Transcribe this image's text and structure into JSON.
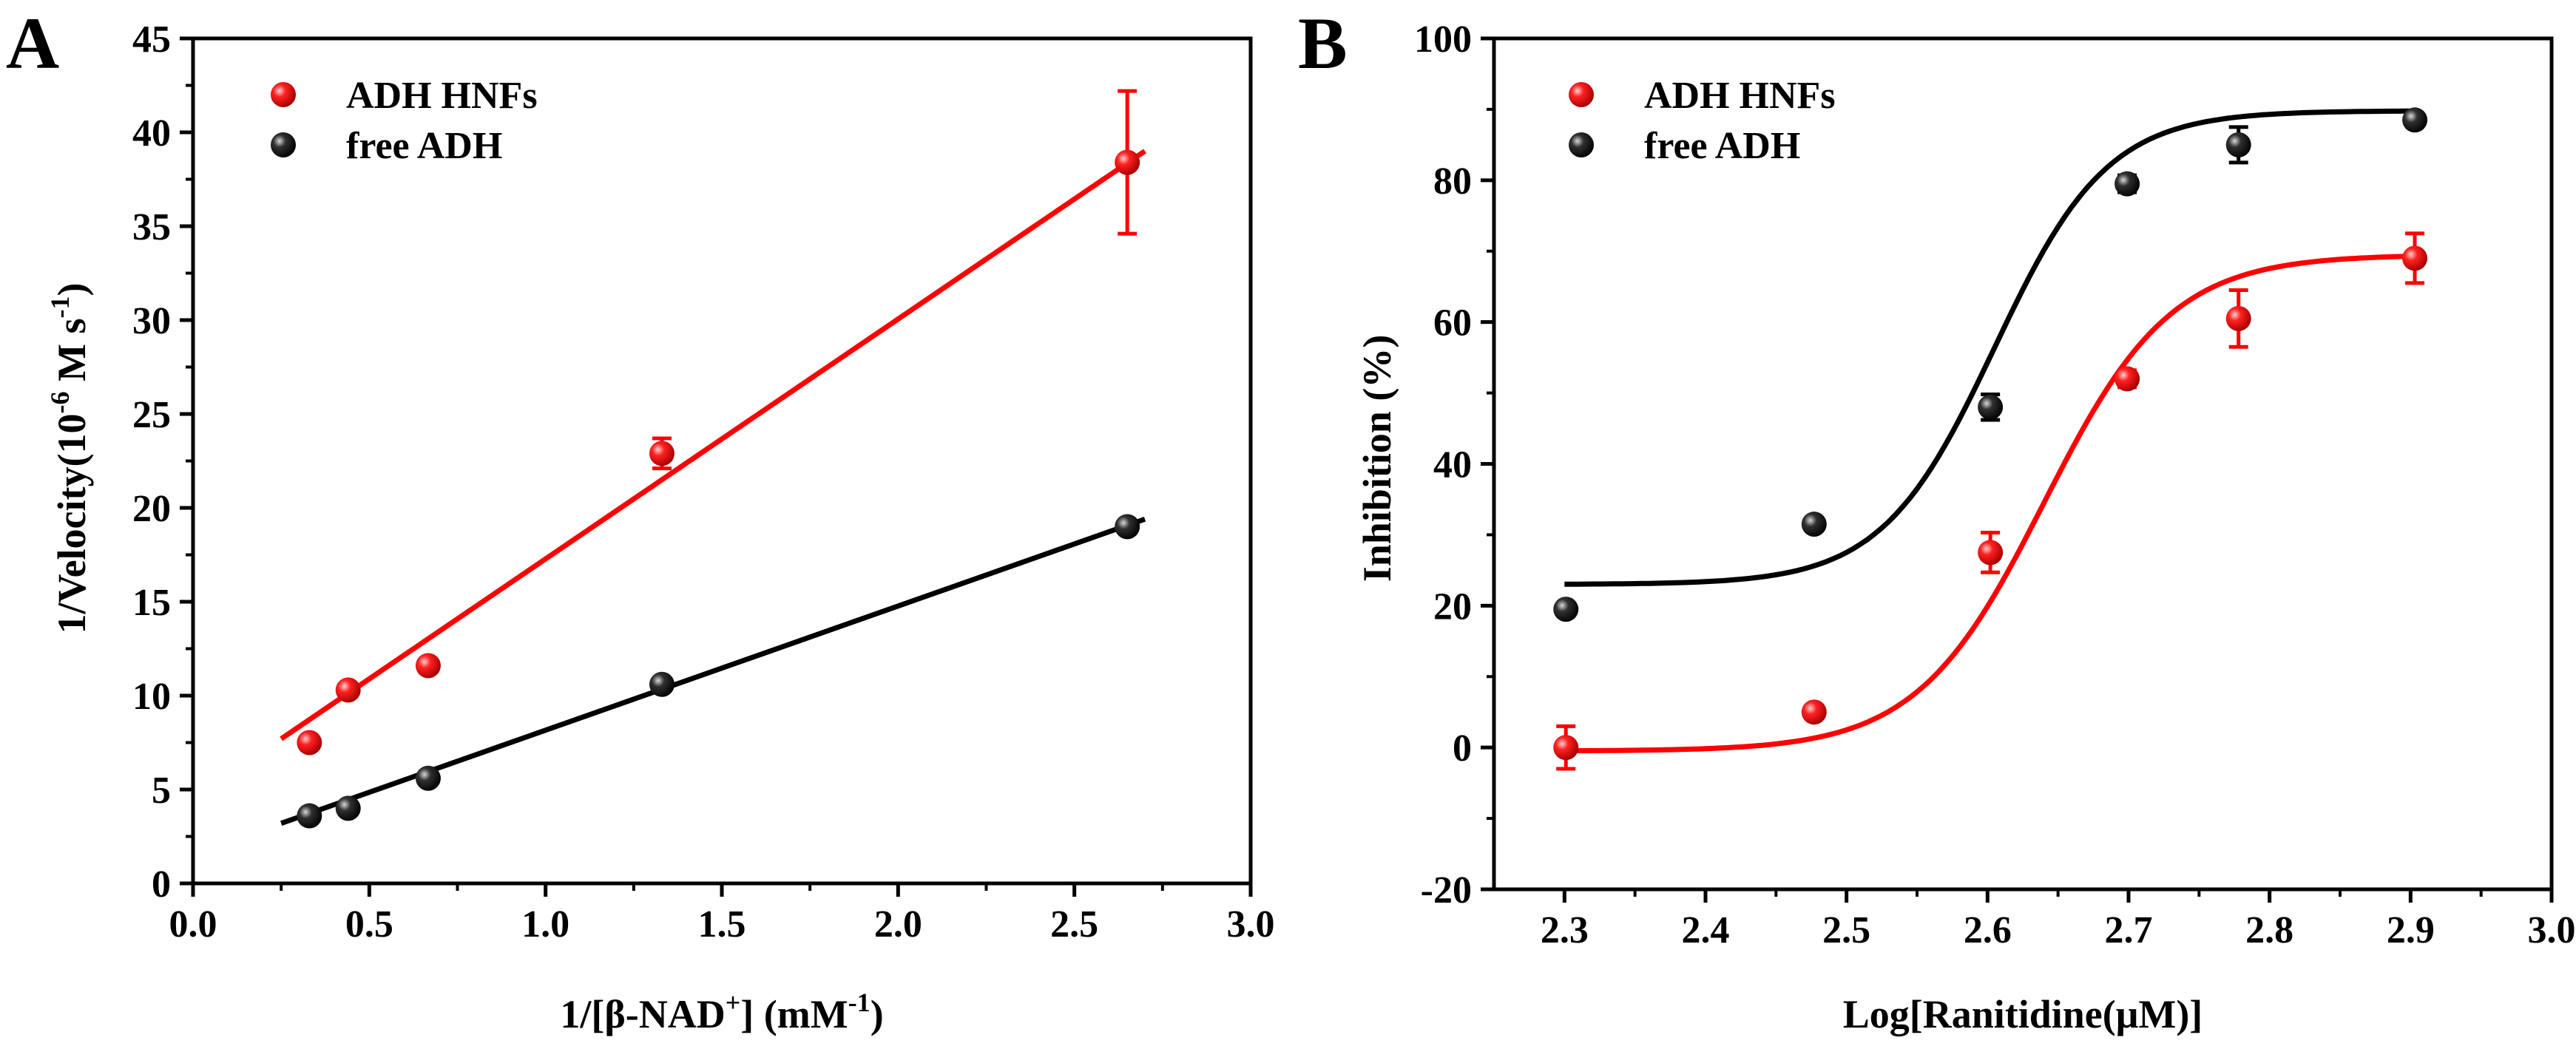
{
  "chart_data": [
    {
      "panel": "A",
      "type": "scatter",
      "xlabel": "1/[β-NAD+] (mM-1)",
      "xlabel_parts": {
        "pre": "1/[β-NAD",
        "sup1": "+",
        "mid": "] (mM",
        "sup2": "-1",
        "post": ")"
      },
      "ylabel": "1/Velocity(10-6 M s-1)",
      "ylabel_parts": {
        "pre": "1/Velocity(10",
        "sup1": "-6",
        "mid": " M s",
        "sup2": "-1",
        "post": ")"
      },
      "xlim": [
        0,
        3
      ],
      "ylim": [
        0,
        45
      ],
      "xticks": [
        0.0,
        0.5,
        1.0,
        1.5,
        2.0,
        2.5,
        3.0
      ],
      "xtick_labels": [
        "0.0",
        "0.5",
        "1.0",
        "1.5",
        "2.0",
        "2.5",
        "3.0"
      ],
      "yticks": [
        0,
        5,
        10,
        15,
        20,
        25,
        30,
        35,
        40,
        45
      ],
      "ytick_labels": [
        "0",
        "5",
        "10",
        "15",
        "20",
        "25",
        "30",
        "35",
        "40",
        "45"
      ],
      "legend_position": "top-left",
      "series": [
        {
          "name": "ADH HNFs",
          "color": "#ff0000",
          "x": [
            0.33,
            0.44,
            0.667,
            1.33,
            2.65
          ],
          "y": [
            7.5,
            10.3,
            11.6,
            22.9,
            38.4
          ],
          "err": [
            0,
            0,
            0,
            0.8,
            3.8
          ],
          "fit": {
            "type": "linear",
            "x": [
              0.25,
              2.7
            ],
            "y": [
              7.7,
              39.0
            ]
          }
        },
        {
          "name": "free ADH",
          "color": "#000000",
          "x": [
            0.33,
            0.44,
            0.667,
            1.33,
            2.65
          ],
          "y": [
            3.6,
            4.0,
            5.6,
            10.6,
            19.0
          ],
          "err": [
            0,
            0,
            0,
            0,
            0
          ],
          "fit": {
            "type": "linear",
            "x": [
              0.25,
              2.7
            ],
            "y": [
              3.2,
              19.4
            ]
          }
        }
      ]
    },
    {
      "panel": "B",
      "type": "scatter",
      "xlabel": "Log[Ranitidine(μM)]",
      "ylabel": "Inhibition (%)",
      "xlim": [
        2.25,
        3.0
      ],
      "ylim": [
        -20,
        100
      ],
      "xticks": [
        2.3,
        2.4,
        2.5,
        2.6,
        2.7,
        2.8,
        2.9,
        3.0
      ],
      "xtick_labels": [
        "2.3",
        "2.4",
        "2.5",
        "2.6",
        "2.7",
        "2.8",
        "2.9",
        "3.0"
      ],
      "yticks": [
        -20,
        0,
        20,
        40,
        60,
        80,
        100
      ],
      "ytick_labels": [
        "-20",
        "0",
        "20",
        "40",
        "60",
        "80",
        "100"
      ],
      "legend_position": "top-left",
      "series": [
        {
          "name": "ADH HNFs",
          "color": "#ff0000",
          "x": [
            2.301,
            2.477,
            2.602,
            2.699,
            2.778,
            2.903
          ],
          "y": [
            0,
            5,
            27.5,
            52,
            60.5,
            69
          ],
          "err": [
            3,
            0,
            2.8,
            1.2,
            4,
            3.5
          ],
          "fit": {
            "type": "sigmoid",
            "bottom": -0.5,
            "top": 69.5,
            "x0": 2.64,
            "slope": 0.045,
            "x_range": [
              2.3,
              2.9
            ]
          }
        },
        {
          "name": "free ADH",
          "color": "#000000",
          "x": [
            2.301,
            2.477,
            2.602,
            2.699,
            2.778,
            2.903
          ],
          "y": [
            19.5,
            31.5,
            48,
            79.5,
            85,
            88.5
          ],
          "err": [
            0,
            0,
            1.8,
            1.2,
            2.5,
            0
          ],
          "fit": {
            "type": "sigmoid",
            "bottom": 23,
            "top": 89.8,
            "x0": 2.605,
            "slope": 0.04,
            "x_range": [
              2.3,
              2.9
            ]
          }
        }
      ]
    }
  ]
}
